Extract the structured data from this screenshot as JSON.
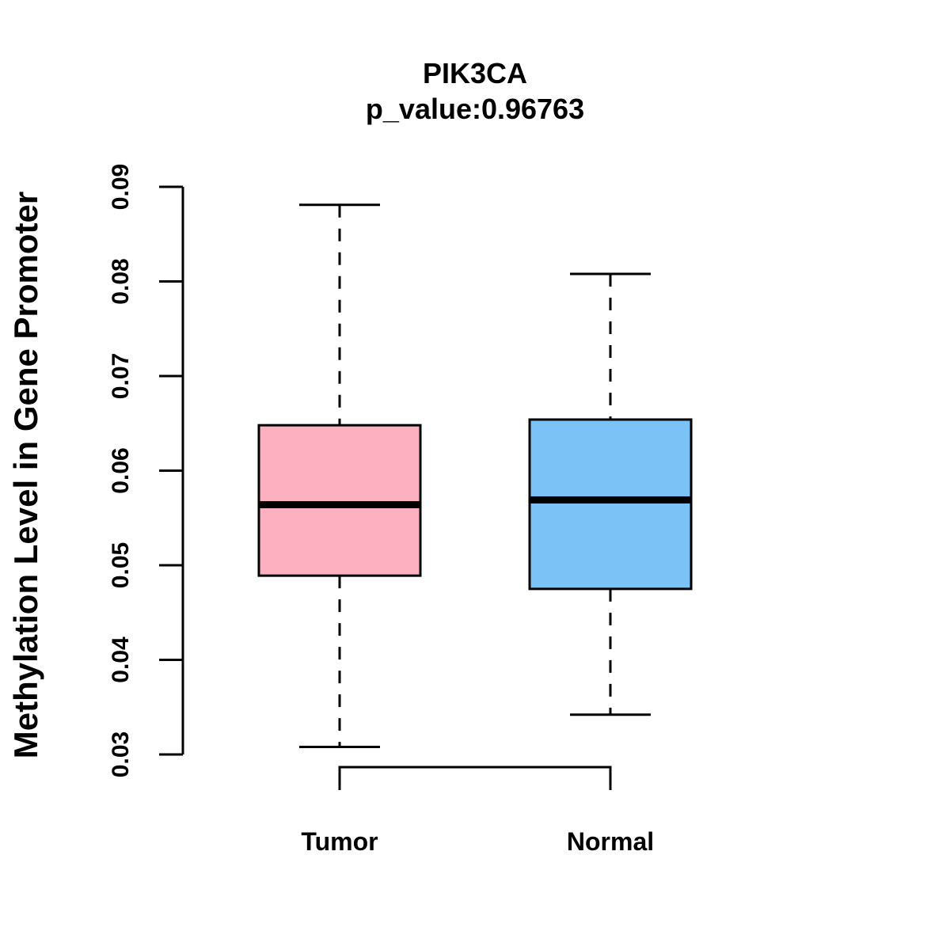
{
  "chart_data": {
    "type": "box",
    "title": "PIK3CA",
    "subtitle": "p_value:0.96763",
    "xlabel": "",
    "ylabel": "Methylation Level in Gene Promoter",
    "ylim": [
      0.03,
      0.09
    ],
    "yticks": [
      "0.03",
      "0.04",
      "0.05",
      "0.06",
      "0.07",
      "0.08",
      "0.09"
    ],
    "categories": [
      "Tumor",
      "Normal"
    ],
    "boxes": [
      {
        "name": "Tumor",
        "min": 0.0308,
        "q1": 0.0489,
        "median": 0.0564,
        "q3": 0.0648,
        "max": 0.0881,
        "color": "#FDB0C0"
      },
      {
        "name": "Normal",
        "min": 0.0342,
        "q1": 0.0475,
        "median": 0.0569,
        "q3": 0.0654,
        "max": 0.0808,
        "color": "#7BC3F7"
      }
    ],
    "comparison_bracket": [
      "Tumor",
      "Normal"
    ],
    "grid": false,
    "legend": "none"
  }
}
